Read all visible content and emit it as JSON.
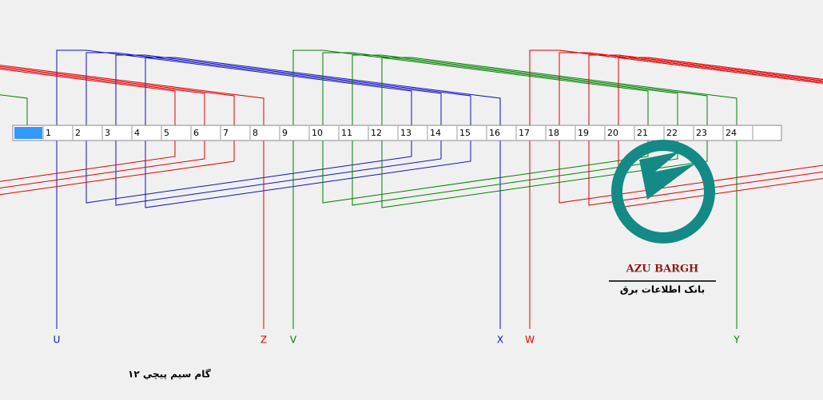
{
  "slots": [
    "1",
    "2",
    "3",
    "4",
    "5",
    "6",
    "7",
    "8",
    "9",
    "10",
    "11",
    "12",
    "13",
    "14",
    "15",
    "16",
    "17",
    "18",
    "19",
    "20",
    "21",
    "22",
    "23",
    "24"
  ],
  "terminals": [
    "U",
    "Z",
    "V",
    "X",
    "W",
    "Y"
  ],
  "caption": "گام سیم پیچي ۱۲",
  "logo": {
    "title": "AZU BARGH",
    "subtitle": "بانک اطلاعات برق"
  }
}
